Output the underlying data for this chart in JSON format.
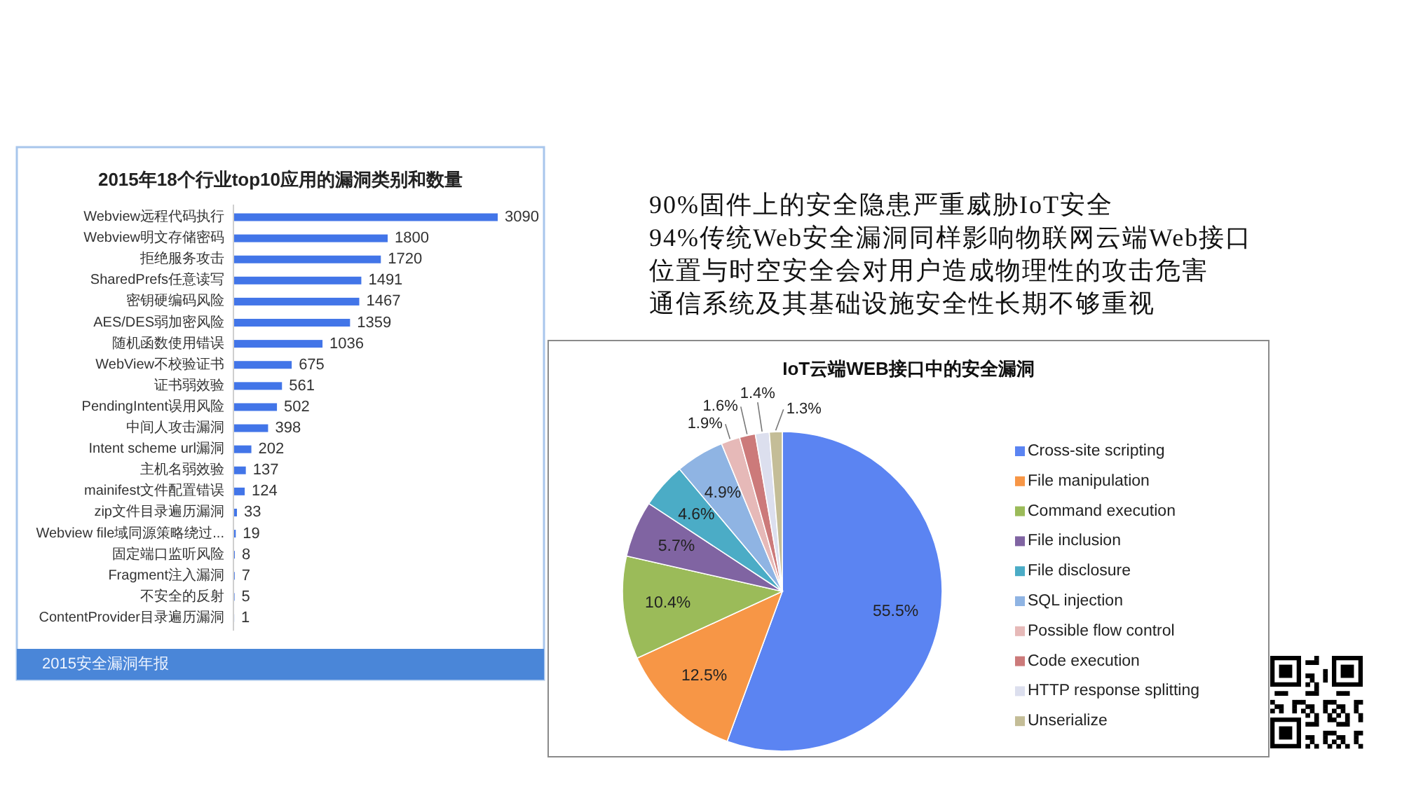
{
  "chart_data": [
    {
      "type": "bar",
      "title": "2015年18个行业top10应用的漏洞类别和数量",
      "orientation": "horizontal",
      "categories": [
        "Webview远程代码执行",
        "Webview明文存储密码",
        "拒绝服务攻击",
        "SharedPrefs任意读写",
        "密钥硬编码风险",
        "AES/DES弱加密风险",
        "随机函数使用错误",
        "WebView不校验证书",
        "证书弱效验",
        "PendingIntent误用风险",
        "中间人攻击漏洞",
        "Intent scheme url漏洞",
        "主机名弱效验",
        "mainifest文件配置错误",
        "zip文件目录遍历漏洞",
        "Webview file域同源策略绕过...",
        "固定端口监听风险",
        "Fragment注入漏洞",
        "不安全的反射",
        "ContentProvider目录遍历漏洞"
      ],
      "values": [
        3090,
        1800,
        1720,
        1491,
        1467,
        1359,
        1036,
        675,
        561,
        502,
        398,
        202,
        137,
        124,
        33,
        19,
        8,
        7,
        5,
        1
      ],
      "color": "#4275e8",
      "data_labels": true,
      "annotations": [
        "2015安全漏洞年报"
      ]
    },
    {
      "type": "other",
      "annotations": [
        "90%固件上的安全隐患严重威胁IoT安全",
        "94%传统Web安全漏洞同样影响物联网云端Web接口",
        "位置与时空安全会对用户造成物理性的攻击危害",
        "通信系统及其基础设施安全性长期不够重视"
      ]
    },
    {
      "type": "pie",
      "title": "IoT云端WEB接口中的安全漏洞",
      "categories": [
        "Cross-site scripting",
        "File manipulation",
        "Command execution",
        "File inclusion",
        "File disclosure",
        "SQL injection",
        "Possible flow control",
        "Code execution",
        "HTTP response splitting",
        "Unserialize"
      ],
      "values": [
        55.5,
        12.5,
        10.4,
        5.7,
        4.6,
        4.9,
        1.9,
        1.6,
        1.4,
        1.3
      ],
      "colors": [
        "#5b84f2",
        "#f79646",
        "#9bbb59",
        "#8064a2",
        "#4bacc6",
        "#8fb4e3",
        "#e6b9b8",
        "#cc7a7a",
        "#dcdfee",
        "#c4bd97"
      ],
      "value_labels": [
        "55.5%",
        "12.5%",
        "10.4%",
        "5.7%",
        "4.6%",
        "4.9%",
        "1.9%",
        "1.6%",
        "1.4%",
        "1.3%"
      ],
      "legend": "right"
    }
  ]
}
